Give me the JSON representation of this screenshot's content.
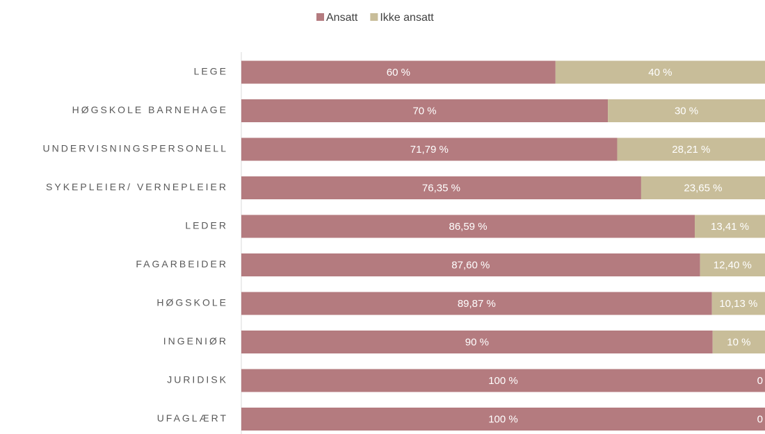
{
  "chart_data": {
    "type": "stacked-bar",
    "orientation": "horizontal",
    "categories": [
      "LEGE",
      "HØGSKOLE BARNEHAGE",
      "UNDERVISNINGSPERSONELL",
      "SYKEPLEIER/ VERNEPLEIER",
      "LEDER",
      "FAGARBEIDER",
      "HØGSKOLE",
      "INGENIØR",
      "JURIDISK",
      "UFAGLÆRT"
    ],
    "series": [
      {
        "name": "Ansatt",
        "color": "#b47b7f",
        "values": [
          60,
          70,
          71.79,
          76.35,
          86.59,
          87.6,
          89.87,
          90,
          100,
          100
        ],
        "value_labels": [
          "60 %",
          "70 %",
          "71,79 %",
          "76,35 %",
          "86,59 %",
          "87,60 %",
          "89,87 %",
          "90 %",
          "100 %",
          "100 %"
        ]
      },
      {
        "name": "Ikke ansatt",
        "color": "#c8bd99",
        "values": [
          40,
          30,
          28.21,
          23.65,
          13.41,
          12.4,
          10.13,
          10,
          0,
          0
        ],
        "value_labels": [
          "40 %",
          "30 %",
          "28,21 %",
          "23,65 %",
          "13,41 %",
          "12,40 %",
          "10,13 %",
          "10 %",
          "0",
          "0"
        ]
      }
    ],
    "xlim": [
      0,
      100
    ],
    "legend": "top"
  }
}
